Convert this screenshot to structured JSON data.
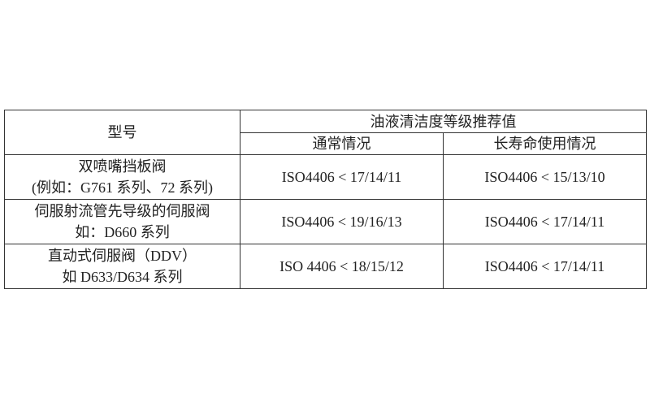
{
  "header": {
    "model": "型号",
    "cleanliness": "油液清洁度等级推荐值",
    "normal": "通常情况",
    "long_life": "长寿命使用情况"
  },
  "rows": [
    {
      "model_line1": "双喷嘴挡板阀",
      "model_line2": "(例如：G761 系列、72 系列)",
      "normal": "ISO4406 < 17/14/11",
      "long_life": "ISO4406 < 15/13/10"
    },
    {
      "model_line1": "伺服射流管先导级的伺服阀",
      "model_line2": "如：D660 系列",
      "normal": "ISO4406 < 19/16/13",
      "long_life": "ISO4406 < 17/14/11"
    },
    {
      "model_line1": "直动式伺服阀（DDV）",
      "model_line2": "如 D633/D634 系列",
      "normal": "ISO 4406 < 18/15/12",
      "long_life": "ISO4406 < 17/14/11"
    }
  ]
}
